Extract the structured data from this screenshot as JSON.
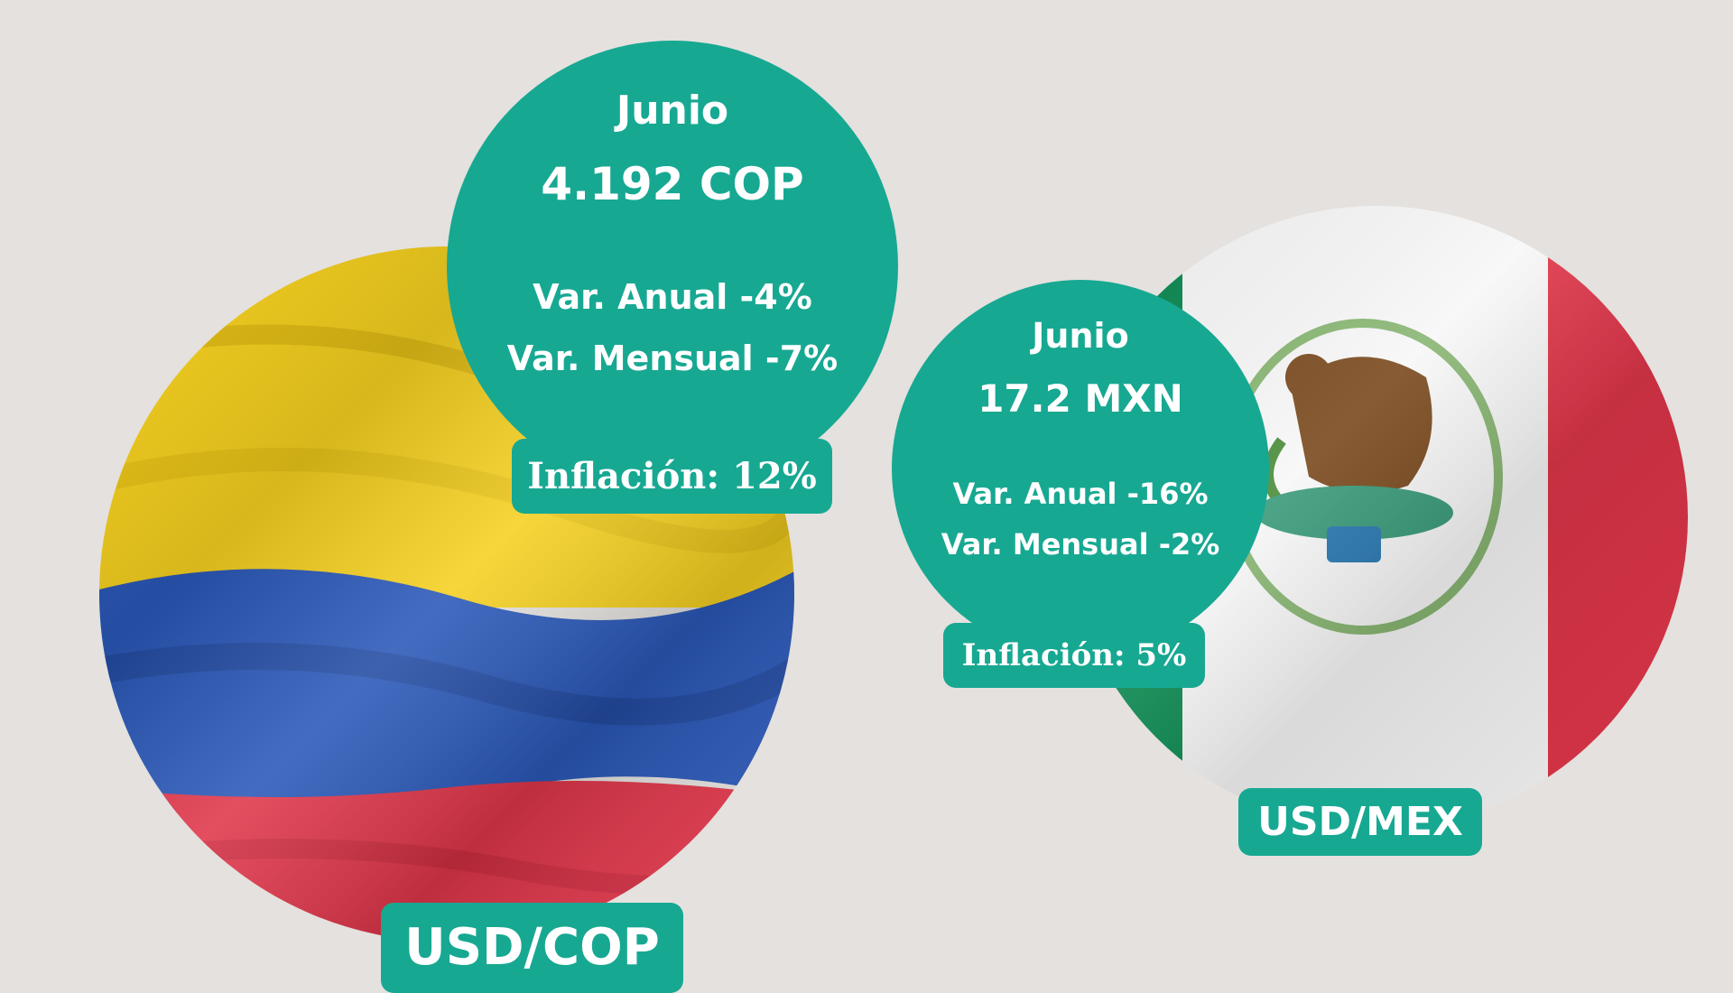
{
  "colombia": {
    "pair": "USD/COP",
    "month": "Junio",
    "rate": "4.192 COP",
    "annual_change": "Var. Anual -4%",
    "monthly_change": "Var. Mensual -7%",
    "inflation": "Inflación: 12%",
    "flag_colors": [
      "#f5d020",
      "#2a58b8",
      "#e0364a"
    ]
  },
  "mexico": {
    "pair": "USD/MEX",
    "month": "Junio",
    "rate": "17.2 MXN",
    "annual_change": "Var. Anual -16%",
    "monthly_change": "Var. Mensual -2%",
    "inflation": "Inflación: 5%",
    "flag_colors": [
      "#0d8a52",
      "#ffffff",
      "#e0364a"
    ]
  },
  "accent_color": "#17a892",
  "background_color": "#e4e1de"
}
